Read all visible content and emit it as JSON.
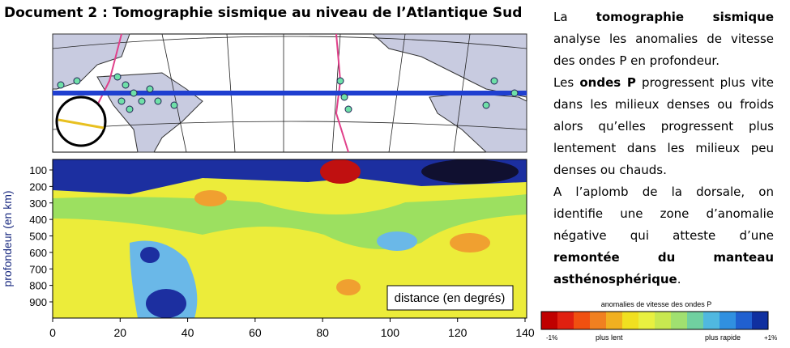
{
  "header": {
    "title": "Document 2 : Tomographie sismique au niveau de l’Atlantique Sud"
  },
  "figure": {
    "y_axis_label": "profondeur (en km)",
    "yticks": [
      100,
      200,
      300,
      400,
      500,
      600,
      700,
      800,
      900
    ],
    "xticks": [
      0,
      20,
      40,
      60,
      80,
      100,
      120,
      140
    ],
    "x_axis_label": "distance (en degrés)"
  },
  "text": {
    "paragraphs": [
      [
        {
          "text": "La ",
          "bold": false
        },
        {
          "text": "tomographie sismique",
          "bold": true
        },
        {
          "text": " analyse les anomalies de vitesse des ondes P en profondeur.",
          "bold": false
        }
      ],
      [
        {
          "text": "Les ",
          "bold": false
        },
        {
          "text": "ondes P",
          "bold": true
        },
        {
          "text": " progressent plus vite dans les milieux denses ou froids alors qu’elles progressent plus lentement dans les milieux peu denses ou chauds.",
          "bold": false
        }
      ],
      [
        {
          "text": "A l’aplomb de la dorsale, on identifie une zone d’anomalie négative qui atteste d’une ",
          "bold": false
        },
        {
          "text": "remontée du manteau asthénosphérique",
          "bold": true
        },
        {
          "text": ".",
          "bold": false
        }
      ]
    ]
  },
  "legend": {
    "title": "anomalies de vitesse des ondes P",
    "min_label": "-1%",
    "slow_label": "plus lent",
    "fast_label": "plus rapide",
    "max_label": "+1%"
  }
}
